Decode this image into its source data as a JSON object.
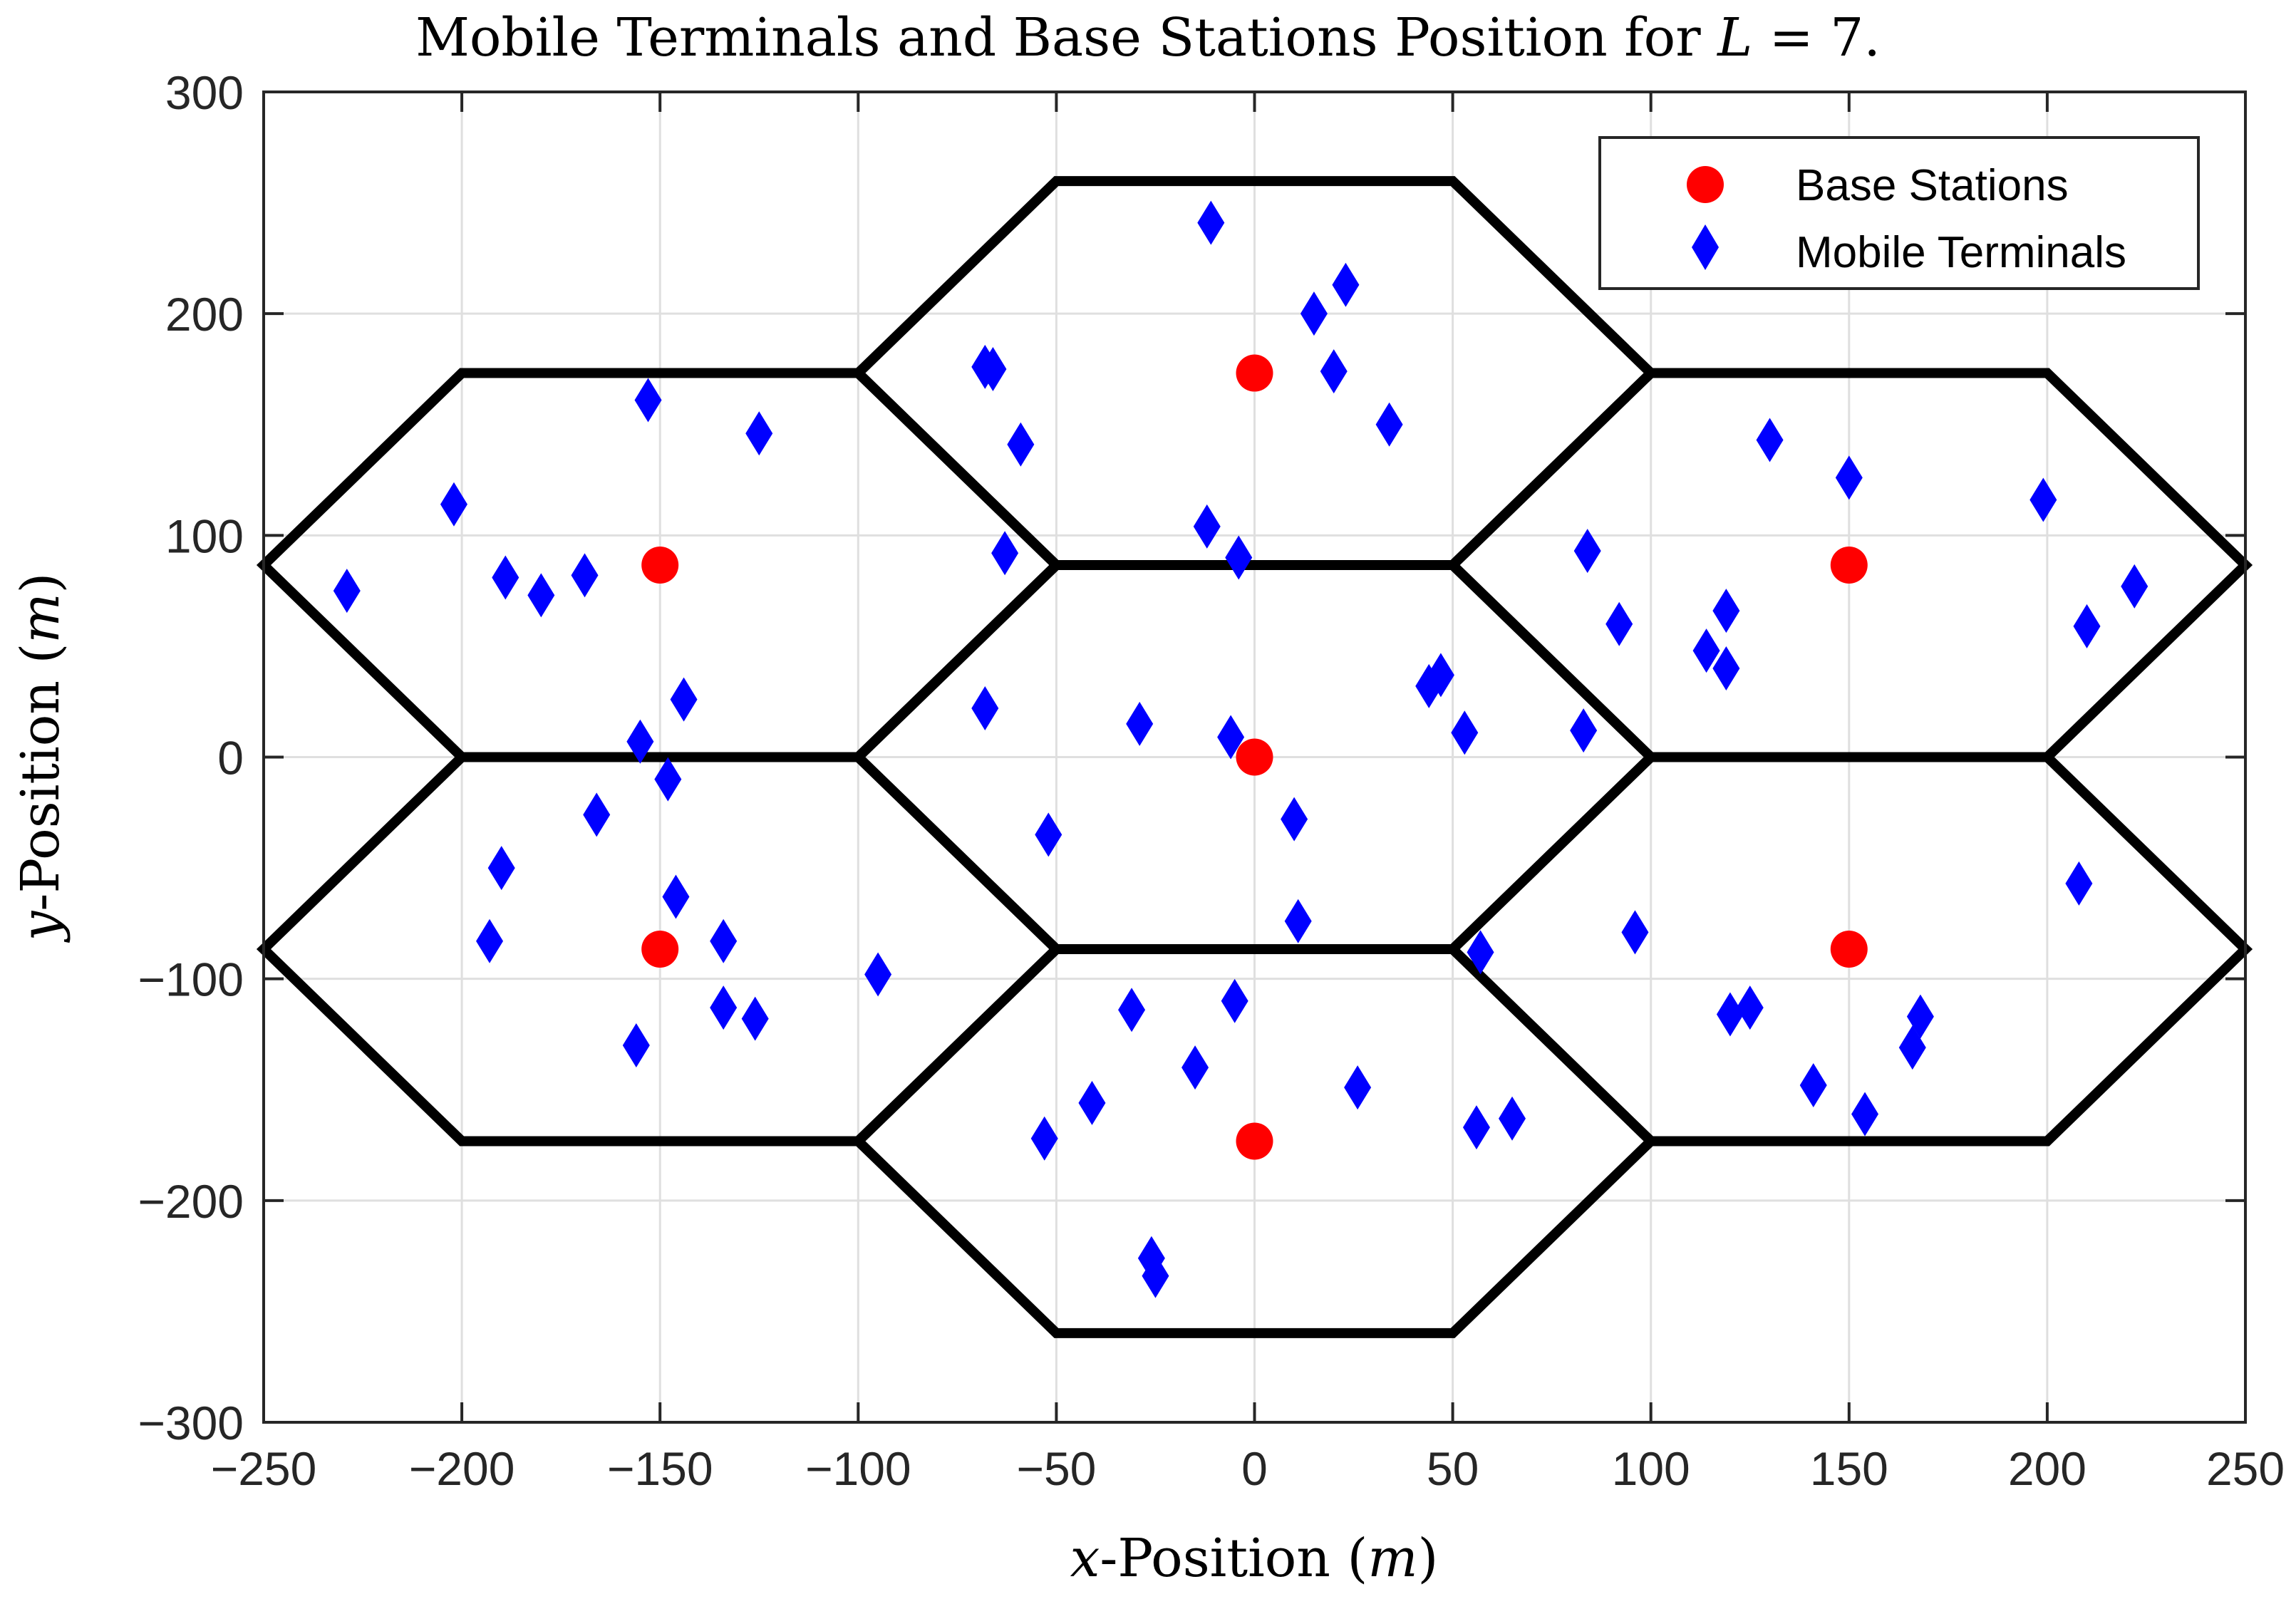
{
  "chart_data": {
    "type": "scatter",
    "title": "Mobile Terminals and Base Stations Position for ",
    "title_var": "L",
    "title_suffix": " = 7.",
    "xlabel_var": "x",
    "xlabel": "-Position (",
    "xlabel_unit": "m",
    "xlabel_close": ")",
    "ylabel_var": "y",
    "ylabel": "-Position (",
    "ylabel_unit": "m",
    "ylabel_close": ")",
    "xlim": [
      -250,
      250
    ],
    "ylim": [
      -300,
      300
    ],
    "xticks": [
      -250,
      -200,
      -150,
      -100,
      -50,
      0,
      50,
      100,
      150,
      200,
      250
    ],
    "yticks": [
      -300,
      -200,
      -100,
      0,
      100,
      200,
      300
    ],
    "xtick_labels": [
      "−250",
      "−200",
      "−150",
      "−100",
      "−50",
      "0",
      "50",
      "100",
      "150",
      "200",
      "250"
    ],
    "ytick_labels": [
      "−300",
      "−200",
      "−100",
      "0",
      "100",
      "200",
      "300"
    ],
    "grid": true,
    "legend_position": "top-right",
    "colors": {
      "base": "#ff0000",
      "mobile": "#0000ff",
      "hex": "#000000",
      "grid": "#dfdfdf"
    },
    "cell_radius": 100,
    "series": [
      {
        "name": "Base Stations",
        "marker": "circle",
        "color": "#ff0000",
        "points": [
          [
            0,
            0
          ],
          [
            0,
            173.2
          ],
          [
            150,
            86.6
          ],
          [
            150,
            -86.6
          ],
          [
            0,
            -173.2
          ],
          [
            -150,
            -86.6
          ],
          [
            -150,
            86.6
          ]
        ]
      },
      {
        "name": "Mobile Terminals",
        "marker": "diamond",
        "color": "#0000ff",
        "points": [
          [
            -11,
            241
          ],
          [
            15,
            200
          ],
          [
            23,
            213
          ],
          [
            20,
            174
          ],
          [
            34,
            150
          ],
          [
            -68,
            176
          ],
          [
            -66,
            175
          ],
          [
            -59,
            141
          ],
          [
            -12,
            104
          ],
          [
            -4,
            90
          ],
          [
            -63,
            92
          ],
          [
            -153,
            161
          ],
          [
            -125,
            146
          ],
          [
            -202,
            114
          ],
          [
            -229,
            75
          ],
          [
            -189,
            81
          ],
          [
            -180,
            73
          ],
          [
            -169,
            82
          ],
          [
            -144,
            26
          ],
          [
            -155,
            7
          ],
          [
            -148,
            -10
          ],
          [
            130,
            143
          ],
          [
            150,
            126
          ],
          [
            199,
            116
          ],
          [
            84,
            93
          ],
          [
            222,
            77
          ],
          [
            119,
            66
          ],
          [
            92,
            60
          ],
          [
            210,
            59
          ],
          [
            114,
            48
          ],
          [
            119,
            40
          ],
          [
            83,
            12
          ],
          [
            -68,
            22
          ],
          [
            -29,
            15
          ],
          [
            -6,
            9
          ],
          [
            44,
            32
          ],
          [
            47,
            37
          ],
          [
            53,
            11
          ],
          [
            -52,
            -35
          ],
          [
            10,
            -28
          ],
          [
            11,
            -74
          ],
          [
            -166,
            -26
          ],
          [
            -190,
            -50
          ],
          [
            -193,
            -83
          ],
          [
            -146,
            -63
          ],
          [
            -134,
            -83
          ],
          [
            -134,
            -113
          ],
          [
            -126,
            -118
          ],
          [
            -156,
            -130
          ],
          [
            -95,
            -98
          ],
          [
            57,
            -88
          ],
          [
            96,
            -79
          ],
          [
            208,
            -57
          ],
          [
            120,
            -116
          ],
          [
            125,
            -113
          ],
          [
            168,
            -117
          ],
          [
            166,
            -131
          ],
          [
            141,
            -148
          ],
          [
            154,
            -161
          ],
          [
            -31,
            -114
          ],
          [
            -5,
            -110
          ],
          [
            -41,
            -156
          ],
          [
            -15,
            -140
          ],
          [
            26,
            -149
          ],
          [
            -53,
            -172
          ],
          [
            56,
            -167
          ],
          [
            65,
            -163
          ],
          [
            -26,
            -226
          ],
          [
            -25,
            -234
          ]
        ]
      }
    ]
  }
}
